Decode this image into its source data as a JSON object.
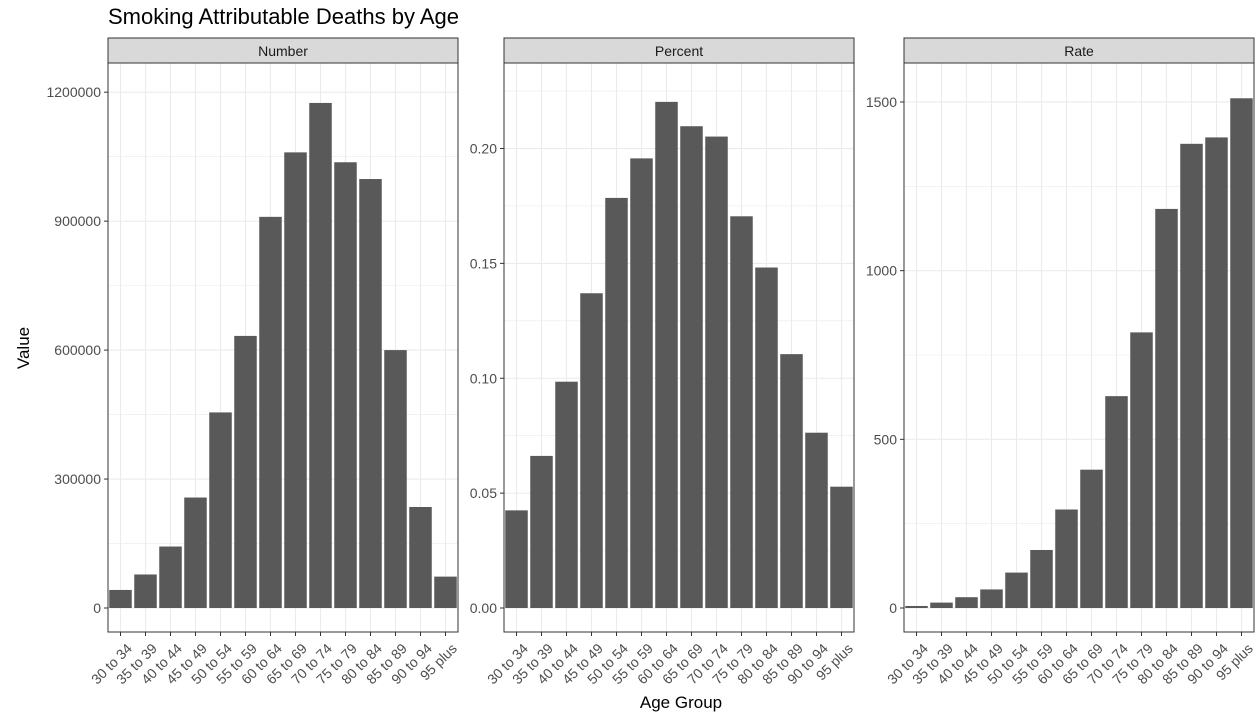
{
  "figure": {
    "title": "Smoking Attributable Deaths by Age",
    "ylabel": "Value",
    "xlabel": "Age Group"
  },
  "colors": {
    "bar": "#595959",
    "strip_bg": "#d9d9d9",
    "grid": "#ebebeb",
    "panel_border": "#333333"
  },
  "chart_data": [
    {
      "type": "bar",
      "facet": "Number",
      "categories": [
        "30 to 34",
        "35 to 39",
        "40 to 44",
        "45 to 49",
        "50 to 54",
        "55 to 59",
        "60 to 64",
        "65 to 69",
        "70 to 74",
        "75 to 79",
        "80 to 84",
        "85 to 89",
        "90 to 94",
        "95 plus"
      ],
      "values": [
        42000,
        78000,
        143000,
        257000,
        455000,
        633000,
        910000,
        1060000,
        1175000,
        1037000,
        998000,
        600000,
        235000,
        73000
      ],
      "ylim": [
        0,
        1240000
      ],
      "yticks": [
        0,
        300000,
        600000,
        900000,
        1200000
      ],
      "ytick_labels": [
        "0",
        "300000",
        "600000",
        "900000",
        "1200000"
      ],
      "grid": true
    },
    {
      "type": "bar",
      "facet": "Percent",
      "categories": [
        "30 to 34",
        "35 to 39",
        "40 to 44",
        "45 to 49",
        "50 to 54",
        "55 to 59",
        "60 to 64",
        "65 to 69",
        "70 to 74",
        "75 to 79",
        "80 to 84",
        "85 to 89",
        "90 to 94",
        "95 plus"
      ],
      "values": [
        0.0425,
        0.0662,
        0.0985,
        0.137,
        0.1785,
        0.1957,
        0.2203,
        0.2097,
        0.2052,
        0.1705,
        0.1482,
        0.1105,
        0.0763,
        0.0528
      ],
      "ylim": [
        0,
        0.232
      ],
      "yticks": [
        0,
        0.05,
        0.1,
        0.15,
        0.2
      ],
      "ytick_labels": [
        "0.00",
        "0.05",
        "0.10",
        "0.15",
        "0.20"
      ],
      "grid": true
    },
    {
      "type": "bar",
      "facet": "Rate",
      "categories": [
        "30 to 34",
        "35 to 39",
        "40 to 44",
        "45 to 49",
        "50 to 54",
        "55 to 59",
        "60 to 64",
        "65 to 69",
        "70 to 74",
        "75 to 79",
        "80 to 84",
        "85 to 89",
        "90 to 94",
        "95 plus"
      ],
      "values": [
        6,
        16,
        32,
        55,
        105,
        172,
        292,
        410,
        628,
        817,
        1183,
        1376,
        1395,
        1511
      ],
      "ylim": [
        0,
        1580
      ],
      "yticks": [
        0,
        500,
        1000,
        1500
      ],
      "ytick_labels": [
        "0",
        "500",
        "1000",
        "1500"
      ],
      "grid": true
    }
  ]
}
